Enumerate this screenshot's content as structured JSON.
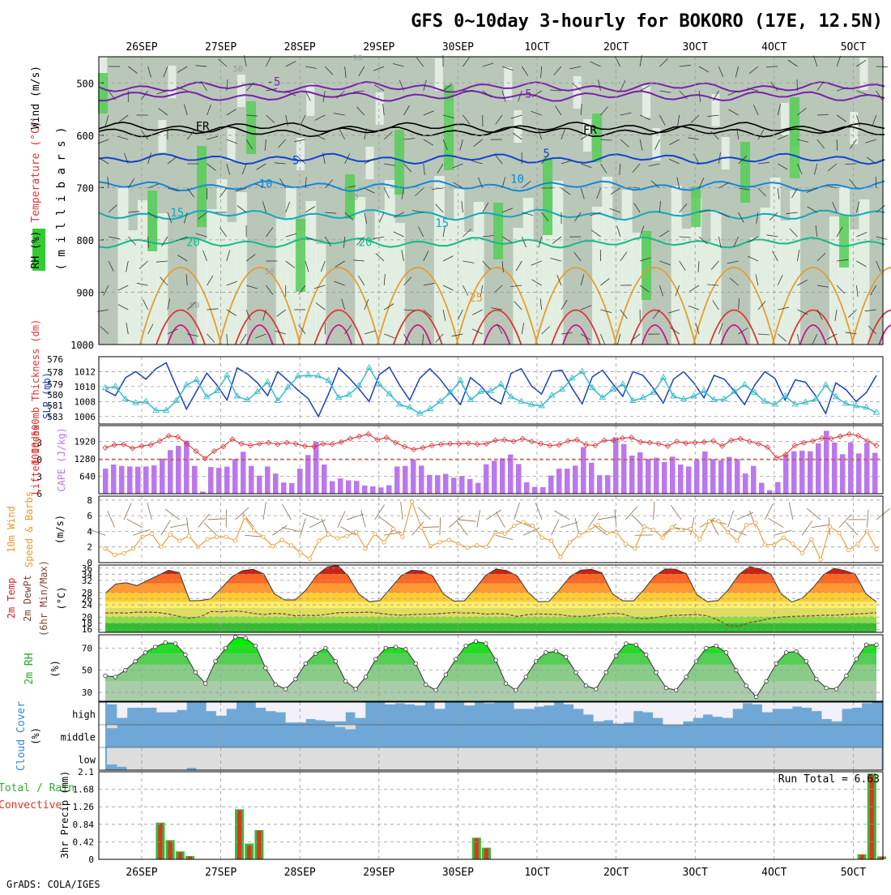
{
  "title": "GFS 0~10day 3-hourly for BOKORO (17E, 12.5N)",
  "footer": "GrADS: COLA/IGES",
  "date_labels": [
    "26SEP",
    "27SEP",
    "28SEP",
    "29SEP",
    "30SEP",
    "1OCT",
    "2OCT",
    "3OCT",
    "4OCT",
    "5OCT"
  ],
  "colors": {
    "grid": "#999999",
    "rh_green": "#33cc33",
    "pale": "#e8f4e8",
    "slp": "#1a3fbf",
    "thick": "#33bbcc",
    "li": "#dd3333",
    "cape": "#bb77ee",
    "wind": "#e89a2a",
    "barb": "#8a6a4a",
    "cloud": "#6fa8d6",
    "precip_total": "#33bb33",
    "precip_conv": "#dd3322"
  },
  "chart_data": [
    {
      "type": "heatmap",
      "name": "cross-section",
      "ylabel_parts": [
        "RH (%)",
        "Temperature (°C)",
        "Wind (m/s)"
      ],
      "ylabel2": "( m i l l i b a r s )",
      "y_ticks": [
        500,
        600,
        700,
        800,
        900,
        1000
      ],
      "ylim": [
        450,
        1000
      ],
      "isotherm_labels": [
        {
          "text": "-5",
          "level": 505,
          "day": 1.72
        },
        {
          "text": "-5",
          "level": 528,
          "day": 4.9
        },
        {
          "text": "FR",
          "level": 590,
          "day": 0.82
        },
        {
          "text": "FR",
          "level": 597,
          "day": 5.72
        },
        {
          "text": "5",
          "level": 655,
          "day": 2.0
        },
        {
          "text": "5",
          "level": 642,
          "day": 5.17
        },
        {
          "text": "10",
          "level": 700,
          "day": 1.62
        },
        {
          "text": "10",
          "level": 691,
          "day": 4.8
        },
        {
          "text": "15",
          "level": 755,
          "day": 0.5
        },
        {
          "text": "15",
          "level": 775,
          "day": 3.85
        },
        {
          "text": "20",
          "level": 812,
          "day": 0.7
        },
        {
          "text": "20",
          "level": 812,
          "day": 2.88
        },
        {
          "text": "25",
          "level": 918,
          "day": 4.28
        },
        {
          "text": "50",
          "level": 930,
          "day": 0.72
        },
        {
          "text": "50",
          "level": 865,
          "day": 1.67
        },
        {
          "text": "50",
          "level": 723,
          "day": 2.73
        },
        {
          "text": "50",
          "level": 478,
          "day": 1.27
        },
        {
          "text": "90",
          "level": 457,
          "day": 2.78
        }
      ]
    },
    {
      "type": "line",
      "name": "slp-thickness",
      "ylabel_left": "1000-500mb Thickness (dm)",
      "ylabel_right": "SLP (mb)",
      "left_ticks": [
        576,
        578,
        579,
        580,
        581,
        583
      ],
      "right_ticks": [
        1006,
        1008,
        1010,
        1012
      ],
      "ylim": [
        1005,
        1014
      ],
      "series": [
        {
          "name": "SLP",
          "values": [
            1009.5,
            1008.8,
            1011.2,
            1012.0,
            1011.0,
            1012.4,
            1013.2,
            1010.0,
            1007.0,
            1009.4,
            1011.8,
            1010.2,
            1008.2,
            1012.5,
            1011.7,
            1010.5,
            1008.8,
            1012.0,
            1010.8,
            1009.5,
            1008.4,
            1006.0,
            1009.0,
            1012.5,
            1011.2,
            1009.7,
            1008.0,
            1011.6,
            1012.6,
            1010.2,
            1008.2,
            1011.1,
            1012.4,
            1011.0,
            1009.2,
            1007.6,
            1011.2,
            1010.1,
            1008.5,
            1007.7,
            1011.8,
            1012.4,
            1010.1,
            1009.0,
            1012.0,
            1012.2,
            1009.8,
            1007.7,
            1011.3,
            1012.2,
            1010.4,
            1008.7,
            1012.0,
            1011.5,
            1009.8,
            1007.8,
            1011.0,
            1012.0,
            1010.5,
            1008.5,
            1011.5,
            1011.0,
            1009.4,
            1007.6,
            1010.2,
            1012.0,
            1011.1,
            1008.2,
            1010.9,
            1010.6,
            1008.8,
            1006.4,
            1010.5,
            1009.6,
            1008.0,
            1009.2,
            1011.5
          ]
        },
        {
          "name": "Thickness",
          "values": [
            1009.8,
            1010.0,
            1008.3,
            1007.8,
            1008.0,
            1006.8,
            1006.8,
            1008.1,
            1010.2,
            1010.9,
            1008.6,
            1009.4,
            1011.5,
            1008.7,
            1008.2,
            1009.3,
            1010.6,
            1008.1,
            1009.9,
            1011.4,
            1011.5,
            1011.4,
            1010.8,
            1008.5,
            1008.9,
            1010.1,
            1012.5,
            1010.3,
            1009.0,
            1007.6,
            1007.2,
            1006.4,
            1007.0,
            1008.0,
            1009.2,
            1010.8,
            1008.2,
            1009.3,
            1009.4,
            1010.3,
            1008.6,
            1008.0,
            1007.6,
            1007.4,
            1008.8,
            1009.6,
            1011.1,
            1012.0,
            1009.8,
            1008.5,
            1009.6,
            1010.3,
            1008.1,
            1008.5,
            1009.2,
            1011.2,
            1008.7,
            1008.3,
            1008.7,
            1009.4,
            1008.2,
            1008.3,
            1009.3,
            1010.2,
            1009.2,
            1008.0,
            1007.6,
            1008.7,
            1007.6,
            1007.9,
            1008.3,
            1010.2,
            1008.6,
            1007.7,
            1007.4,
            1007.2,
            1006.5
          ]
        }
      ]
    },
    {
      "type": "bar",
      "name": "cape-li",
      "ylabel_left": "Lifted Index",
      "ylabel_right": "CAPE (J/kg)",
      "left_ticks": [
        -3,
        0,
        3,
        6
      ],
      "right_ticks": [
        640,
        1280,
        1920
      ],
      "cape": [
        920,
        1070,
        1020,
        1000,
        990,
        1000,
        1040,
        1290,
        1600,
        1760,
        1950,
        1020,
        80,
        980,
        950,
        990,
        1270,
        1540,
        1020,
        660,
        1000,
        740,
        410,
        390,
        920,
        1420,
        1910,
        1070,
        460,
        560,
        490,
        470,
        300,
        270,
        230,
        310,
        1000,
        1020,
        1260,
        1030,
        690,
        680,
        730,
        590,
        650,
        540,
        400,
        1080,
        1210,
        1300,
        1440,
        1090,
        420,
        250,
        240,
        670,
        920,
        920,
        1030,
        1710,
        1140,
        680,
        680,
        2070,
        1820,
        1400,
        1520,
        1280,
        1320,
        1160,
        1360,
        1070,
        1000,
        1230,
        1550,
        1270,
        1230,
        1350,
        1270,
        740,
        1020,
        400,
        130,
        430,
        1430,
        1560,
        1580,
        1560,
        1850,
        2310,
        1880,
        1450,
        1890,
        1480,
        1860,
        1500
      ],
      "li": [
        -2.1,
        -2.6,
        -2.7,
        -2.0,
        -2.4,
        -2.6,
        -3.3,
        -4.2,
        -4.0,
        -2.8,
        -1.5,
        -0.2,
        -1.5,
        -2.3,
        -3.6,
        -2.8,
        -2.5,
        -2.8,
        -3.0,
        -2.7,
        -3.0,
        -2.8,
        -2.4,
        -2.3,
        -2.8,
        -2.7,
        -3.1,
        -3.7,
        -4.1,
        -4.5,
        -3.5,
        -3.9,
        -3.0,
        -2.3,
        -1.8,
        -2.1,
        -2.5,
        -2.7,
        -2.8,
        -2.8,
        -2.9,
        -2.7,
        -2.8,
        -3.4,
        -3.5,
        -3.2,
        -3.7,
        -3.2,
        -2.8,
        -2.5,
        -2.6,
        -3.3,
        -3.5,
        -2.6,
        -2.5,
        -3.4,
        -3.4,
        -3.8,
        -3.9,
        -3.1,
        -3.0,
        -2.8,
        -2.4,
        -3.2,
        -2.9,
        -3.0,
        -3.1,
        -3.3,
        -2.4,
        -3.4,
        -3.7,
        -3.2,
        -2.8,
        -2.2,
        -0.3,
        -0.9,
        -2.5,
        -3.0,
        -3.3,
        -3.8,
        -3.7,
        -4.1,
        -4.5,
        -4.2,
        -3.3,
        -2.5
      ]
    },
    {
      "type": "line",
      "name": "wind10m",
      "ylabel": "10m Wind Speed & Barbs",
      "unit": "(m/s)",
      "y_ticks": [
        0,
        2,
        4,
        6,
        8
      ],
      "ylim": [
        0,
        8.5
      ],
      "values": [
        1.8,
        1.0,
        1.2,
        1.8,
        3.3,
        3.7,
        2.0,
        3.6,
        2.8,
        3.4,
        2.0,
        3.0,
        3.3,
        3.3,
        2.8,
        5.8,
        4.1,
        3.3,
        2.1,
        2.9,
        2.2,
        1.3,
        0.5,
        2.8,
        3.6,
        3.1,
        3.4,
        3.9,
        1.8,
        3.7,
        2.6,
        4.3,
        3.3,
        7.8,
        4.5,
        2.1,
        2.6,
        2.9,
        2.4,
        1.9,
        2.2,
        2.0,
        3.9,
        3.7,
        4.7,
        5.2,
        4.7,
        3.2,
        2.8,
        0.7,
        2.6,
        3.5,
        4.1,
        4.8,
        3.8,
        3.9,
        2.4,
        1.8,
        4.6,
        4.2,
        3.2,
        4.5,
        4.2,
        4.3,
        3.0,
        5.3,
        5.3,
        3.9,
        2.8,
        4.8,
        5.1,
        2.3,
        2.3,
        3.2,
        2.4,
        1.2,
        3.0,
        0.4,
        4.6,
        3.8,
        1.6,
        2.4,
        4.0,
        1.7
      ]
    },
    {
      "type": "area",
      "name": "temp2m",
      "ylabel": "2m Temp 2m DewPt (6hr Min/Max)",
      "unit": "(°C)",
      "y_ticks": [
        16,
        18,
        20,
        24,
        26,
        28,
        32,
        34,
        36
      ],
      "ylim": [
        15,
        37
      ],
      "temp": [
        27.8,
        30.8,
        31.2,
        30.3,
        32.0,
        33.6,
        35.3,
        34.5,
        25.3,
        25.4,
        26.0,
        29.5,
        33.2,
        35.2,
        35.6,
        34.1,
        27.6,
        25.6,
        25.6,
        28.8,
        33.6,
        36.4,
        36.9,
        33.4,
        27.5,
        25.0,
        25.4,
        29.4,
        33.5,
        35.3,
        35.1,
        33.4,
        27.6,
        25.2,
        25.3,
        29.2,
        33.6,
        35.7,
        35.2,
        33.4,
        28.2,
        25.0,
        25.1,
        29.0,
        33.2,
        35.3,
        35.6,
        34.5,
        27.6,
        25.3,
        25.3,
        29.0,
        33.4,
        35.7,
        35.6,
        34.2,
        27.3,
        25.0,
        25.4,
        29.0,
        34.0,
        36.5,
        35.7,
        34.0,
        27.5,
        24.9,
        26.2,
        29.6,
        33.9,
        35.9,
        35.2,
        34.0,
        27.6,
        25.0
      ],
      "dewpt": [
        21.3,
        21.4,
        21.3,
        21.6,
        21.6,
        21.5,
        21.0,
        20.2,
        19.6,
        20.1,
        21.8,
        21.7,
        22.0,
        21.8,
        21.2,
        20.8,
        21.2,
        21.0,
        20.4,
        20.6,
        20.5,
        20.9,
        21.4,
        21.5,
        21.5,
        21.6,
        21.2,
        20.8,
        20.6,
        20.8,
        20.9,
        21.0,
        21.2,
        21.5,
        21.3,
        21.4,
        20.9,
        21.1,
        20.9,
        20.2,
        20.8,
        21.0,
        20.9,
        20.8,
        20.3,
        20.2,
        20.4,
        20.9,
        21.2,
        21.0,
        19.8,
        19.4,
        19.8,
        20.3,
        20.6,
        20.7,
        20.8,
        20.4,
        19.0,
        17.2,
        17.0,
        18.2,
        18.8,
        19.6,
        20.0,
        20.2,
        20.3,
        20.4,
        20.6,
        20.6,
        20.8,
        21.0,
        21.2,
        21.4
      ]
    },
    {
      "type": "area",
      "name": "rh2m",
      "ylabel": "2m RH",
      "unit": "(%)",
      "y_ticks": [
        30,
        50,
        70
      ],
      "ylim": [
        22,
        82
      ],
      "values": [
        45,
        44,
        50,
        58,
        66,
        71,
        75,
        74,
        64,
        48,
        38,
        58,
        70,
        80,
        79,
        72,
        52,
        37,
        33,
        42,
        56,
        65,
        70,
        58,
        40,
        33,
        44,
        60,
        70,
        71,
        69,
        56,
        37,
        32,
        46,
        60,
        72,
        76,
        74,
        59,
        38,
        32,
        44,
        58,
        66,
        67,
        62,
        48,
        36,
        33,
        48,
        63,
        74,
        73,
        64,
        48,
        34,
        32,
        44,
        58,
        70,
        72,
        66,
        50,
        36,
        26,
        40,
        56,
        66,
        67,
        58,
        42,
        34,
        33,
        45,
        60,
        73,
        73
      ]
    },
    {
      "type": "bar",
      "name": "cloud-cover",
      "ylabel": "Cloud Cover (%)",
      "level_labels": [
        "high",
        "middle",
        "low"
      ],
      "high": [
        90,
        30,
        75,
        75,
        75,
        55,
        55,
        65,
        100,
        100,
        60,
        40,
        70,
        100,
        100,
        75,
        60,
        55,
        10,
        10,
        25,
        20,
        15,
        15,
        55,
        30,
        100,
        100,
        90,
        95,
        90,
        85,
        100,
        70,
        100,
        100,
        85,
        100,
        95,
        100,
        100,
        70,
        70,
        80,
        85,
        100,
        90,
        70,
        45,
        15,
        20,
        5,
        10,
        60,
        55,
        30,
        0,
        0,
        15,
        30,
        45,
        35,
        30,
        70,
        95,
        90,
        55,
        70,
        70,
        80,
        75,
        60,
        25,
        15,
        70,
        75,
        95,
        100
      ],
      "middle": [
        85,
        100,
        100,
        100,
        100,
        100,
        100,
        100,
        100,
        100,
        100,
        100,
        100,
        100,
        100,
        100,
        100,
        100,
        100,
        100,
        100,
        100,
        100,
        90,
        80,
        100,
        100,
        100,
        100,
        100,
        100,
        100,
        100,
        100,
        100,
        100,
        100,
        100,
        100,
        100,
        100,
        100,
        100,
        100,
        100,
        100,
        100,
        100,
        100,
        100,
        100,
        100,
        100,
        100,
        100,
        100,
        100,
        100,
        100,
        100,
        100,
        100,
        100,
        100,
        100,
        100,
        100,
        100,
        100,
        100,
        100,
        100,
        100,
        100,
        100,
        100,
        100,
        100
      ],
      "low": [
        25,
        15,
        0,
        0,
        0,
        0,
        0,
        0,
        10,
        0,
        0,
        0,
        0,
        0,
        0,
        0,
        0,
        0,
        0,
        0,
        0,
        0,
        0,
        0,
        0,
        0,
        0,
        0,
        0,
        0,
        0,
        0,
        0,
        0,
        0,
        0,
        0,
        0,
        0,
        0,
        0,
        0,
        0,
        0,
        0,
        0,
        0,
        0,
        0,
        0,
        0,
        0,
        0,
        0,
        0,
        0,
        0,
        0,
        0,
        0,
        0,
        0,
        0,
        0,
        0,
        0,
        0,
        0,
        0,
        0,
        0,
        0,
        0,
        0,
        0,
        0,
        0,
        0
      ]
    },
    {
      "type": "bar",
      "name": "precip",
      "ylabel_left": "Total / Rain Convective",
      "ylabel": "3hr Precip (mm)",
      "y_ticks": [
        0,
        0.42,
        0.84,
        1.26,
        1.68,
        2.1
      ],
      "ylim": [
        0,
        2.1
      ],
      "run_total_label": "Run Total = 6.63",
      "bars": [
        {
          "day": 0.25,
          "total": 0.88,
          "conv": 0.86
        },
        {
          "day": 0.375,
          "total": 0.46,
          "conv": 0.44
        },
        {
          "day": 0.5,
          "total": 0.19,
          "conv": 0.17
        },
        {
          "day": 0.625,
          "total": 0.08,
          "conv": 0.07
        },
        {
          "day": 1.25,
          "total": 1.2,
          "conv": 1.18
        },
        {
          "day": 1.375,
          "total": 0.38,
          "conv": 0.33
        },
        {
          "day": 1.5,
          "total": 0.7,
          "conv": 0.69
        },
        {
          "day": 4.25,
          "total": 0.52,
          "conv": 0.5
        },
        {
          "day": 4.375,
          "total": 0.28,
          "conv": 0.26
        },
        {
          "day": 9.125,
          "total": 0.12,
          "conv": 0.11
        },
        {
          "day": 9.25,
          "total": 2.06,
          "conv": 2.02
        },
        {
          "day": 9.375,
          "total": 0.07,
          "conv": 0.06
        }
      ]
    }
  ]
}
